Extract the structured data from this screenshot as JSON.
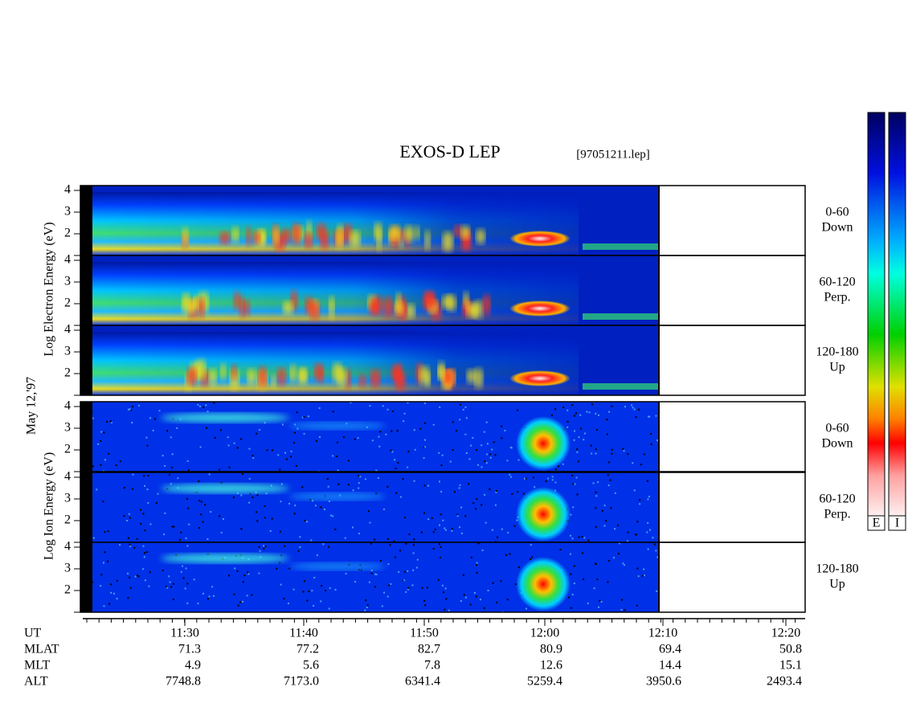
{
  "header": {
    "title": "EXOS-D LEP",
    "file": "[97051211.lep]"
  },
  "side_labels": {
    "electron": "Log Electron Energy (eV)",
    "date": "May 12,'97",
    "ion": "Log Ion Energy (eV)"
  },
  "panels": [
    {
      "yticks": [
        "4",
        "3",
        "2"
      ],
      "angle": [
        "0-60",
        "Down"
      ]
    },
    {
      "yticks": [
        "4",
        "3",
        "2"
      ],
      "angle": [
        "60-120",
        "Perp."
      ]
    },
    {
      "yticks": [
        "4",
        "3",
        "2"
      ],
      "angle": [
        "120-180",
        "Up"
      ]
    },
    {
      "yticks": [
        "4",
        "3",
        "2"
      ],
      "angle": [
        "0-60",
        "Down"
      ]
    },
    {
      "yticks": [
        "4",
        "3",
        "2"
      ],
      "angle": [
        "60-120",
        "Perp."
      ]
    },
    {
      "yticks": [
        "4",
        "3",
        "2"
      ],
      "angle": [
        "120-180",
        "Up"
      ]
    }
  ],
  "colorbar": {
    "labels": [
      "E",
      "I"
    ]
  },
  "xaxis": {
    "labels": [
      "11:30",
      "11:40",
      "11:50",
      "12:00",
      "12:10",
      "12:20"
    ]
  },
  "table": {
    "rows": [
      [
        "UT"
      ],
      [
        "MLAT",
        "71.3",
        "77.2",
        "82.7",
        "80.9",
        "69.4",
        "50.8"
      ],
      [
        "MLT",
        "4.9",
        "5.6",
        "7.8",
        "12.6",
        "14.4",
        "15.1"
      ],
      [
        "ALT",
        "7748.8",
        "7173.0",
        "6341.4",
        "5259.4",
        "3950.6",
        "2493.4"
      ]
    ]
  }
}
